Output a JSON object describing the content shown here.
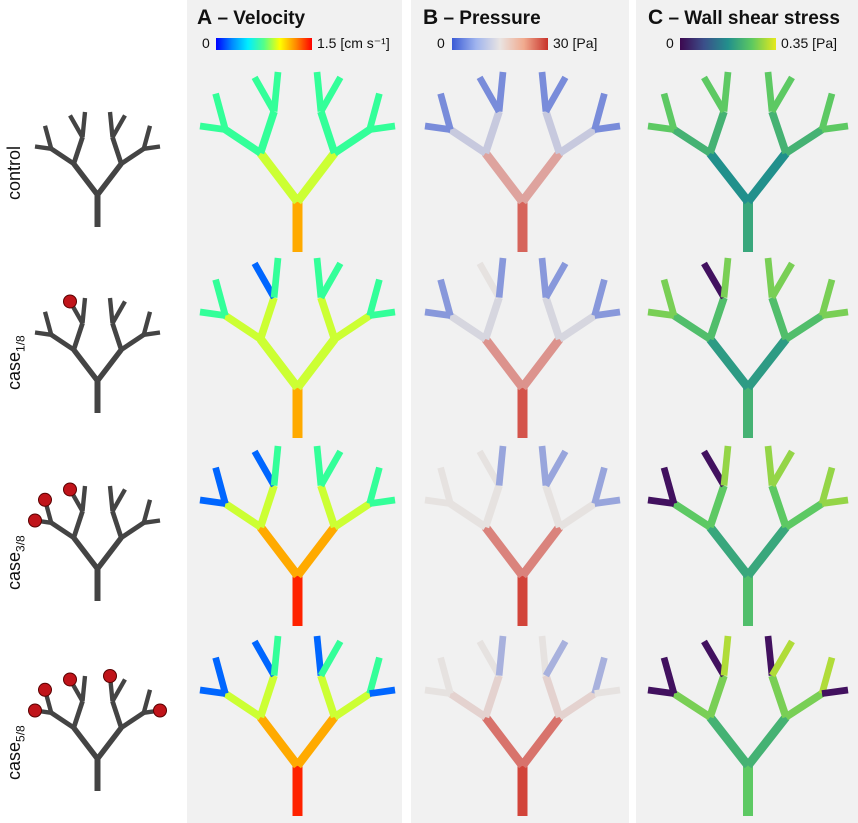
{
  "panels": [
    {
      "letter": "A",
      "title": "– Velocity",
      "cbar_min": "0",
      "cbar_max": "1.5 [cm s⁻¹]",
      "colormap": "jet"
    },
    {
      "letter": "B",
      "title": "– Pressure",
      "cbar_min": "0",
      "cbar_max": "30 [Pa]",
      "colormap": "coolwarm"
    },
    {
      "letter": "C",
      "title": "– Wall shear stress",
      "cbar_min": "0",
      "cbar_max": "0.35 [Pa]",
      "colormap": "viridis"
    }
  ],
  "rows": [
    {
      "label": "control",
      "sub": ""
    },
    {
      "label": "case",
      "sub": "1/8"
    },
    {
      "label": "case",
      "sub": "3/8"
    },
    {
      "label": "case",
      "sub": "5/8"
    }
  ],
  "colors": {
    "tree_gray": "#444444",
    "occlusion_red": "#c0141a",
    "panel_bg": "#f1f1f1"
  }
}
